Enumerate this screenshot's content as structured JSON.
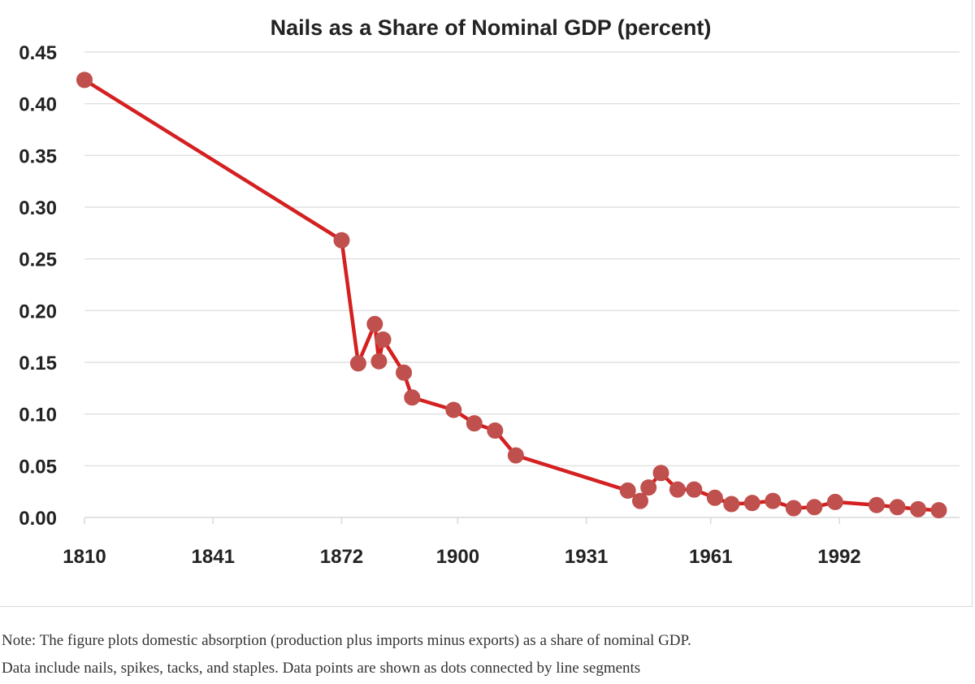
{
  "chart_data": {
    "type": "line",
    "title": "Nails as a Share of Nominal GDP (percent)",
    "xlabel": "",
    "ylabel": "",
    "x_ticks": [
      "1810",
      "1841",
      "1872",
      "1900",
      "1931",
      "1961",
      "1992"
    ],
    "y_ticks": [
      "0.45",
      "0.40",
      "0.35",
      "0.30",
      "0.25",
      "0.20",
      "0.15",
      "0.10",
      "0.05",
      "0.00"
    ],
    "xlim": [
      1810,
      2021
    ],
    "ylim": [
      0,
      0.45
    ],
    "grid": "horizontal",
    "legend": "none",
    "series": [
      {
        "color": "#d42020",
        "marker_color": "#c0504d",
        "x": [
          1810,
          1872,
          1876,
          1880,
          1881,
          1882,
          1887,
          1889,
          1899,
          1904,
          1909,
          1914,
          1941,
          1944,
          1946,
          1949,
          1953,
          1957,
          1962,
          1966,
          1971,
          1976,
          1981,
          1986,
          1991,
          2001,
          2006,
          2011,
          2016
        ],
        "y": [
          0.423,
          0.268,
          0.149,
          0.187,
          0.151,
          0.172,
          0.14,
          0.116,
          0.104,
          0.091,
          0.084,
          0.06,
          0.026,
          0.016,
          0.029,
          0.043,
          0.027,
          0.027,
          0.019,
          0.013,
          0.014,
          0.016,
          0.009,
          0.01,
          0.015,
          0.012,
          0.01,
          0.008,
          0.007
        ]
      }
    ]
  },
  "note": {
    "line1": "Note: The figure plots domestic absorption (production plus imports minus exports) as a share of nominal GDP.",
    "line2": "Data include nails, spikes, tacks, and staples. Data points are shown as dots connected by line segments"
  }
}
